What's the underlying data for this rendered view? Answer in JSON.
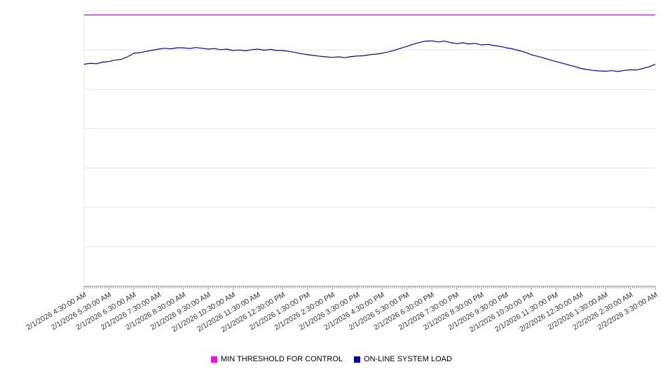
{
  "chart_data": {
    "type": "line",
    "title": "",
    "xlabel": "",
    "ylabel": "",
    "ylim": [
      0,
      100
    ],
    "grid": true,
    "grid_divisions": 7,
    "legend_position": "bottom",
    "grid_color": "#e5e5e5",
    "axis_color": "#999999",
    "label_color": "#333333",
    "x_labels": [
      "2/1/2026 4:30:00 AM",
      "2/1/2026 5:30:00 AM",
      "2/1/2026 6:30:00 AM",
      "2/1/2026 7:30:00 AM",
      "2/1/2026 8:30:00 AM",
      "2/1/2026 9:30:00 AM",
      "2/1/2026 10:30:00 AM",
      "2/1/2026 11:30:00 AM",
      "2/1/2026 12:30:00 PM",
      "2/1/2026 1:30:00 PM",
      "2/1/2026 2:30:00 PM",
      "2/1/2026 3:30:00 PM",
      "2/1/2026 4:30:00 PM",
      "2/1/2026 5:30:00 PM",
      "2/1/2026 6:30:00 PM",
      "2/1/2026 7:30:00 PM",
      "2/1/2026 8:30:00 PM",
      "2/1/2026 9:30:00 PM",
      "2/1/2026 10:30:00 PM",
      "2/1/2026 11:30:00 PM",
      "2/2/2026 12:30:00 AM",
      "2/2/2026 1:30:00 AM",
      "2/2/2026 2:30:00 AM",
      "2/2/2026 3:30:00 AM"
    ],
    "minor_ticks_per_interval": 12,
    "series": [
      {
        "name": "MIN THRESHOLD FOR CONTROL",
        "type": "threshold",
        "color": "#ff00ff",
        "value": 98.4
      },
      {
        "name": "ON-LINE SYSTEM LOAD",
        "type": "line",
        "color": "#0000cc",
        "values": [
          80.5,
          80.9,
          80.7,
          81.3,
          81.5,
          82.0,
          82.3,
          83.2,
          84.5,
          84.7,
          85.2,
          85.6,
          86.0,
          86.3,
          86.1,
          86.5,
          86.5,
          86.2,
          86.6,
          86.3,
          86.0,
          86.2,
          85.8,
          86.0,
          85.5,
          85.7,
          85.4,
          85.8,
          86.0,
          85.6,
          85.9,
          85.5,
          85.5,
          85.2,
          84.8,
          84.3,
          84.0,
          83.7,
          83.4,
          83.2,
          83.0,
          83.2,
          82.9,
          83.3,
          83.5,
          83.6,
          84.0,
          84.2,
          84.5,
          85.0,
          85.6,
          86.3,
          87.0,
          87.8,
          88.4,
          88.9,
          89.0,
          88.6,
          88.9,
          88.4,
          88.0,
          88.3,
          87.9,
          88.1,
          87.5,
          87.7,
          87.3,
          87.0,
          86.5,
          86.1,
          85.5,
          84.9,
          84.0,
          83.4,
          82.8,
          82.1,
          81.5,
          80.9,
          80.3,
          79.7,
          79.0,
          78.6,
          78.3,
          78.1,
          78.0,
          78.2,
          77.9,
          78.3,
          78.5,
          78.4,
          79.0,
          79.6,
          80.5
        ]
      }
    ]
  },
  "legend": {
    "threshold_label": "MIN THRESHOLD FOR CONTROL",
    "load_label": "ON-LINE SYSTEM LOAD"
  }
}
